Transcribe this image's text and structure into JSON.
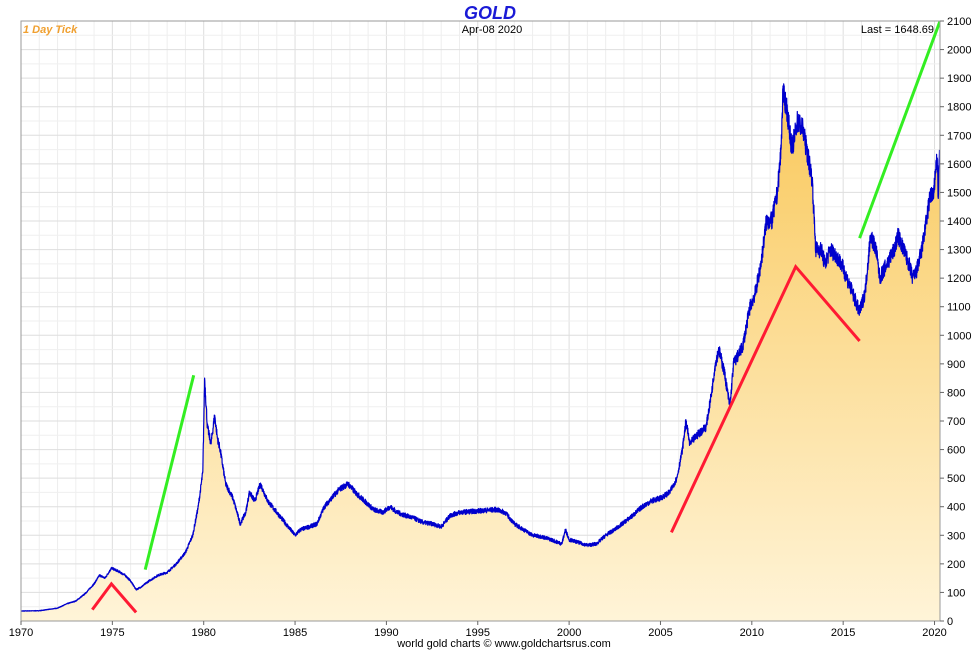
{
  "chart_data": {
    "type": "area",
    "title": "GOLD",
    "date_label": "Apr-08  2020",
    "timeframe_label": "1 Day Tick",
    "last_label": "Last = 1648.69",
    "credit": "world gold charts © www.goldchartsrus.com",
    "xlim": [
      1970,
      2020.3
    ],
    "ylim": [
      0,
      2100
    ],
    "x_ticks": [
      1970,
      1975,
      1980,
      1985,
      1990,
      1995,
      2000,
      2005,
      2010,
      2015,
      2020
    ],
    "y_ticks": [
      0,
      100,
      200,
      300,
      400,
      500,
      600,
      700,
      800,
      900,
      1000,
      1100,
      1200,
      1300,
      1400,
      1500,
      1600,
      1700,
      1800,
      1900,
      2000,
      2100
    ],
    "grid": true,
    "colors": {
      "line": "#0000cc",
      "fill_top": "#f9c85a",
      "fill_bottom": "#fff4d8",
      "red_trend": "#ff1a33",
      "green_trend": "#33ee22",
      "title": "#1a1ad6",
      "timeframe": "#f0a030"
    },
    "series": [
      {
        "x": [
          1970.0,
          1971.0,
          1972.0,
          1972.5,
          1973.0,
          1973.5,
          1974.0,
          1974.3,
          1974.6,
          1974.95,
          1975.3,
          1975.7,
          1976.0,
          1976.3,
          1976.6,
          1977.0,
          1977.5,
          1978.0,
          1978.5,
          1979.0,
          1979.4,
          1979.7,
          1979.95,
          1980.05,
          1980.2,
          1980.4,
          1980.6,
          1980.75,
          1980.9,
          1981.2,
          1981.6,
          1982.0,
          1982.3,
          1982.5,
          1982.8,
          1983.1,
          1983.5,
          1984.0,
          1984.5,
          1985.0,
          1985.3,
          1985.8,
          1986.2,
          1986.6,
          1987.0,
          1987.4,
          1987.9,
          1988.3,
          1988.8,
          1989.3,
          1989.8,
          1990.2,
          1990.6,
          1991.0,
          1991.5,
          1992.0,
          1992.5,
          1993.0,
          1993.5,
          1994.0,
          1995.0,
          1996.0,
          1996.5,
          1997.0,
          1997.5,
          1998.0,
          1998.5,
          1999.0,
          1999.6,
          1999.8,
          2000.0,
          2000.5,
          2001.0,
          2001.5,
          2002.0,
          2002.5,
          2003.0,
          2003.5,
          2004.0,
          2004.5,
          2005.0,
          2005.5,
          2005.9,
          2006.2,
          2006.4,
          2006.6,
          2007.0,
          2007.5,
          2007.8,
          2008.0,
          2008.2,
          2008.5,
          2008.8,
          2009.0,
          2009.5,
          2009.9,
          2010.2,
          2010.5,
          2010.8,
          2011.1,
          2011.4,
          2011.6,
          2011.7,
          2011.9,
          2012.2,
          2012.5,
          2012.8,
          2013.0,
          2013.3,
          2013.5,
          2013.8,
          2014.0,
          2014.3,
          2014.6,
          2014.9,
          2015.2,
          2015.5,
          2015.9,
          2016.2,
          2016.5,
          2016.8,
          2017.0,
          2017.4,
          2017.8,
          2018.0,
          2018.3,
          2018.6,
          2018.8,
          2019.0,
          2019.3,
          2019.6,
          2019.8,
          2019.95,
          2020.05,
          2020.15,
          2020.2,
          2020.27
        ],
        "y": [
          35,
          36,
          45,
          60,
          70,
          95,
          130,
          160,
          150,
          185,
          175,
          160,
          140,
          110,
          120,
          140,
          160,
          170,
          200,
          240,
          300,
          400,
          520,
          850,
          680,
          620,
          720,
          640,
          600,
          480,
          430,
          340,
          380,
          450,
          420,
          480,
          420,
          380,
          340,
          300,
          320,
          330,
          340,
          400,
          430,
          460,
          480,
          450,
          420,
          390,
          380,
          400,
          380,
          370,
          360,
          345,
          340,
          330,
          370,
          380,
          385,
          390,
          380,
          340,
          320,
          300,
          295,
          285,
          270,
          320,
          285,
          275,
          265,
          270,
          300,
          320,
          345,
          370,
          400,
          420,
          430,
          450,
          500,
          600,
          700,
          620,
          650,
          680,
          800,
          900,
          950,
          870,
          750,
          900,
          960,
          1100,
          1150,
          1250,
          1400,
          1400,
          1500,
          1650,
          1850,
          1800,
          1650,
          1750,
          1720,
          1650,
          1550,
          1300,
          1300,
          1250,
          1300,
          1280,
          1250,
          1200,
          1150,
          1080,
          1150,
          1350,
          1300,
          1200,
          1250,
          1300,
          1350,
          1300,
          1250,
          1200,
          1220,
          1300,
          1420,
          1500,
          1480,
          1580,
          1620,
          1480,
          1648.69
        ]
      }
    ],
    "trendlines": [
      {
        "color": "red",
        "points": [
          [
            1973.9,
            40
          ],
          [
            1974.95,
            130
          ],
          [
            1976.3,
            30
          ]
        ]
      },
      {
        "color": "green",
        "points": [
          [
            1976.8,
            180
          ],
          [
            1979.45,
            860
          ]
        ]
      },
      {
        "color": "red",
        "points": [
          [
            2005.6,
            310
          ],
          [
            2012.4,
            1240
          ],
          [
            2015.9,
            980
          ]
        ]
      },
      {
        "color": "green",
        "points": [
          [
            2015.9,
            1340
          ],
          [
            2020.65,
            2160
          ]
        ]
      }
    ]
  }
}
